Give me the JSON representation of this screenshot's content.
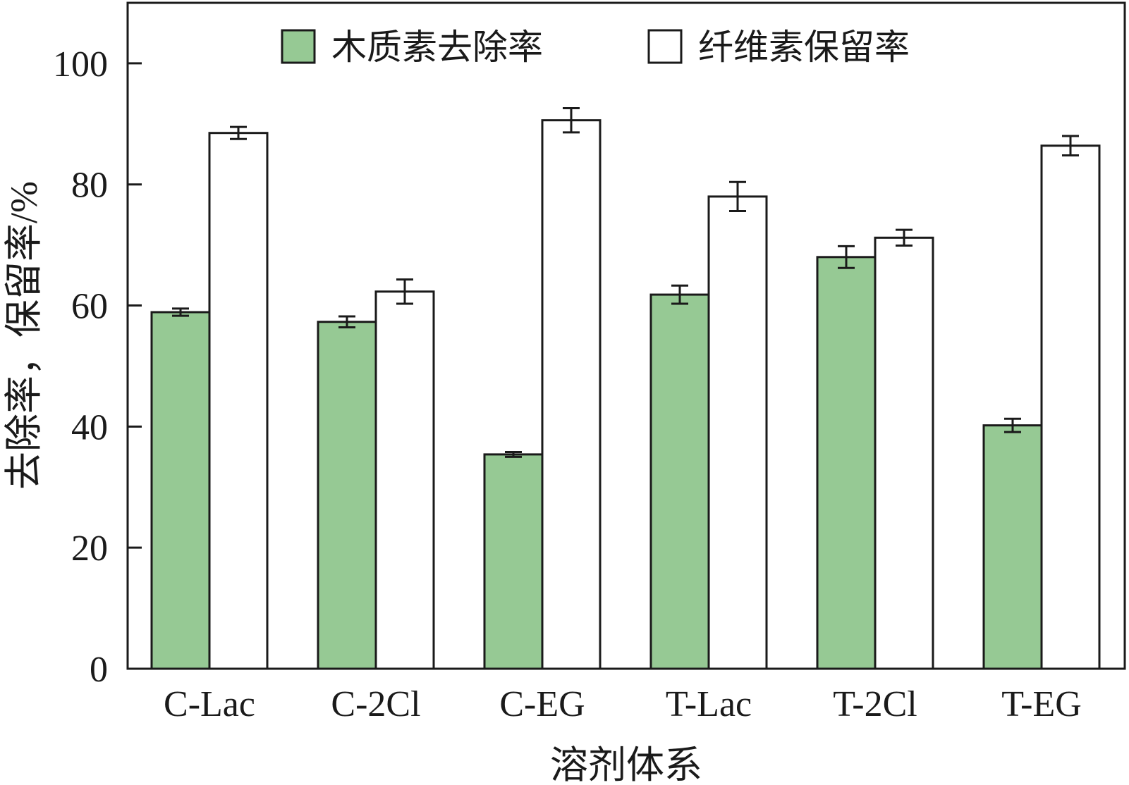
{
  "chart_data": {
    "type": "bar",
    "xlabel": "溶剂体系",
    "ylabel": "去除率，保留率/%",
    "ylim": [
      0,
      110
    ],
    "yticks": [
      0,
      20,
      40,
      60,
      80,
      100
    ],
    "grid": false,
    "legend_position": "top-center",
    "categories": [
      "C-Lac",
      "C-2Cl",
      "C-EG",
      "T-Lac",
      "T-2Cl",
      "T-EG"
    ],
    "series": [
      {
        "name": "木质素去除率",
        "color": "#96c994",
        "values": [
          58.9,
          57.3,
          35.4,
          61.8,
          68.0,
          40.2
        ],
        "errors": [
          0.6,
          0.9,
          0.4,
          1.5,
          1.8,
          1.1
        ]
      },
      {
        "name": "纤维素保留率",
        "color": "#ffffff",
        "values": [
          88.5,
          62.3,
          90.6,
          78.0,
          71.2,
          86.4
        ],
        "errors": [
          1.0,
          2.0,
          2.0,
          2.4,
          1.3,
          1.6
        ]
      }
    ]
  }
}
